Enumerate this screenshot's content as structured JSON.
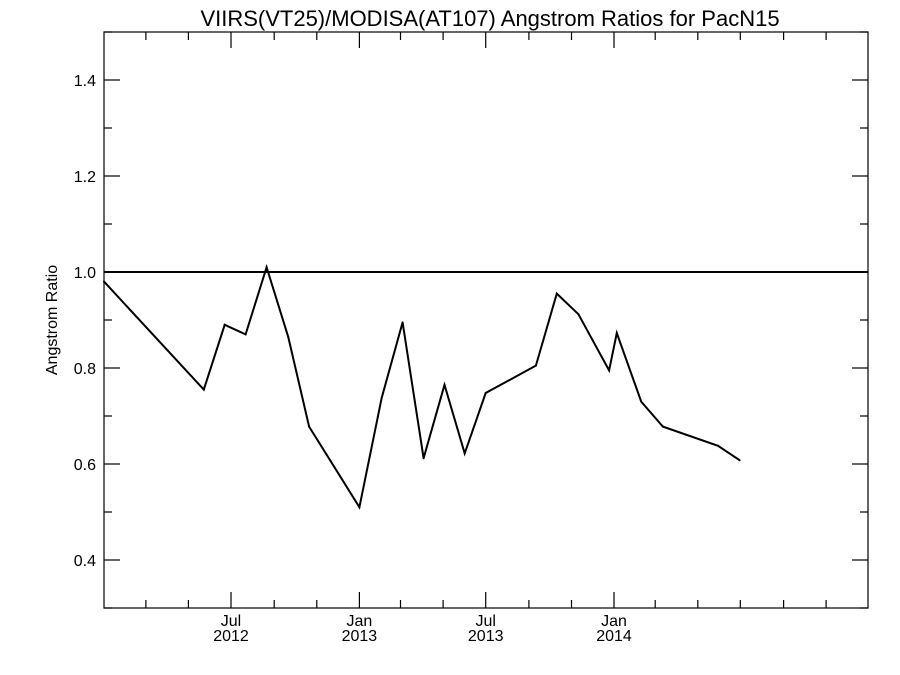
{
  "chart_data": {
    "type": "line",
    "title": "VIIRS(VT25)/MODISA(AT107)  Angstrom Ratios for PacN15",
    "xlabel": "",
    "ylabel": "Angstrom Ratio",
    "ylim": [
      0.3,
      1.5
    ],
    "yticks": [
      "0.4",
      "0.6",
      "0.8",
      "1.0",
      "1.2",
      "1.4"
    ],
    "xlim": [
      "2012-01-01",
      "2014-12-31"
    ],
    "xticks": [
      {
        "date": "2012-07-01",
        "month": "Jul",
        "year": "2012"
      },
      {
        "date": "2013-01-01",
        "month": "Jan",
        "year": "2013"
      },
      {
        "date": "2013-07-01",
        "month": "Jul",
        "year": "2013"
      },
      {
        "date": "2014-01-01",
        "month": "Jan",
        "year": "2014"
      }
    ],
    "reference_line": {
      "y": 1.0
    },
    "series": [
      {
        "x": [
          "2012-01-01",
          "2012-05-23",
          "2012-06-22",
          "2012-07-22",
          "2012-08-21",
          "2012-09-21",
          "2012-10-21",
          "2013-01-01",
          "2013-02-02",
          "2013-03-04",
          "2013-04-03",
          "2013-05-03",
          "2013-06-01",
          "2013-07-01",
          "2013-09-11",
          "2013-10-11",
          "2013-11-11",
          "2013-12-25",
          "2014-01-05",
          "2014-02-09",
          "2014-03-12",
          "2014-05-30",
          "2014-06-30"
        ],
        "y": [
          0.98,
          0.755,
          0.89,
          0.87,
          1.01,
          0.865,
          0.678,
          0.51,
          0.738,
          0.895,
          0.612,
          0.765,
          0.622,
          0.748,
          0.805,
          0.955,
          0.912,
          0.795,
          0.873,
          0.73,
          0.678,
          0.638,
          0.608
        ]
      }
    ],
    "grid": false,
    "legend": "none"
  }
}
